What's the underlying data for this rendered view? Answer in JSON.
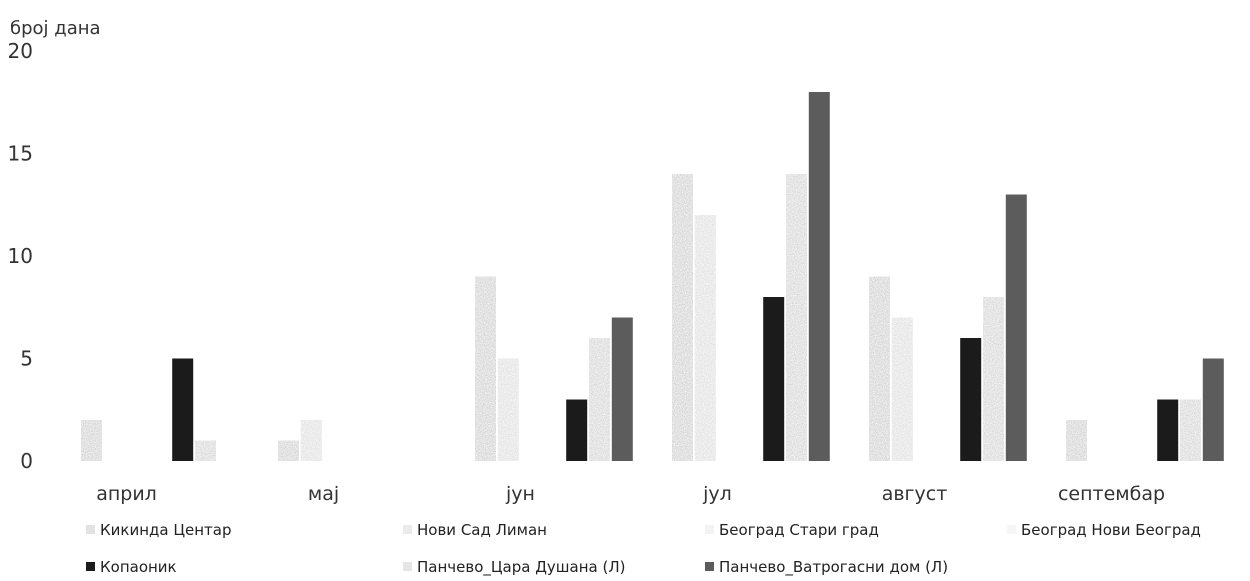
{
  "chart_data": {
    "type": "bar",
    "ylabel": "број дана",
    "ylim": [
      0,
      20
    ],
    "yticks": [
      "0",
      "5",
      "10",
      "15",
      "20"
    ],
    "categories": [
      "април",
      "мај",
      "јун",
      "јул",
      "август",
      "септембар"
    ],
    "series": [
      {
        "name": "Кикинда Центар",
        "color": "#d6d6d6",
        "values": [
          2,
          1,
          9,
          14,
          9,
          2
        ]
      },
      {
        "name": "Нови Сад Лиман",
        "color": "#e3e3e3",
        "values": [
          0,
          2,
          5,
          12,
          7,
          0
        ]
      },
      {
        "name": "Београд Стари град",
        "color": "#eeeeee",
        "values": [
          0,
          0,
          0,
          0,
          0,
          0
        ]
      },
      {
        "name": "Београд Нови Београд",
        "color": "#f2f2f2",
        "values": [
          0,
          0,
          0,
          0,
          0,
          0
        ]
      },
      {
        "name": "Копаоник",
        "color": "#1b1b1b",
        "values": [
          5,
          0,
          3,
          8,
          6,
          3
        ]
      },
      {
        "name": "Панчево_Цара Душана (Л)",
        "color": "#dadada",
        "values": [
          1,
          0,
          6,
          14,
          8,
          3
        ]
      },
      {
        "name": "Панчево_Ватрогасни дом (Л)",
        "color": "#5c5c5c",
        "values": [
          0,
          0,
          7,
          18,
          13,
          5
        ]
      }
    ],
    "legend": "bottom"
  }
}
